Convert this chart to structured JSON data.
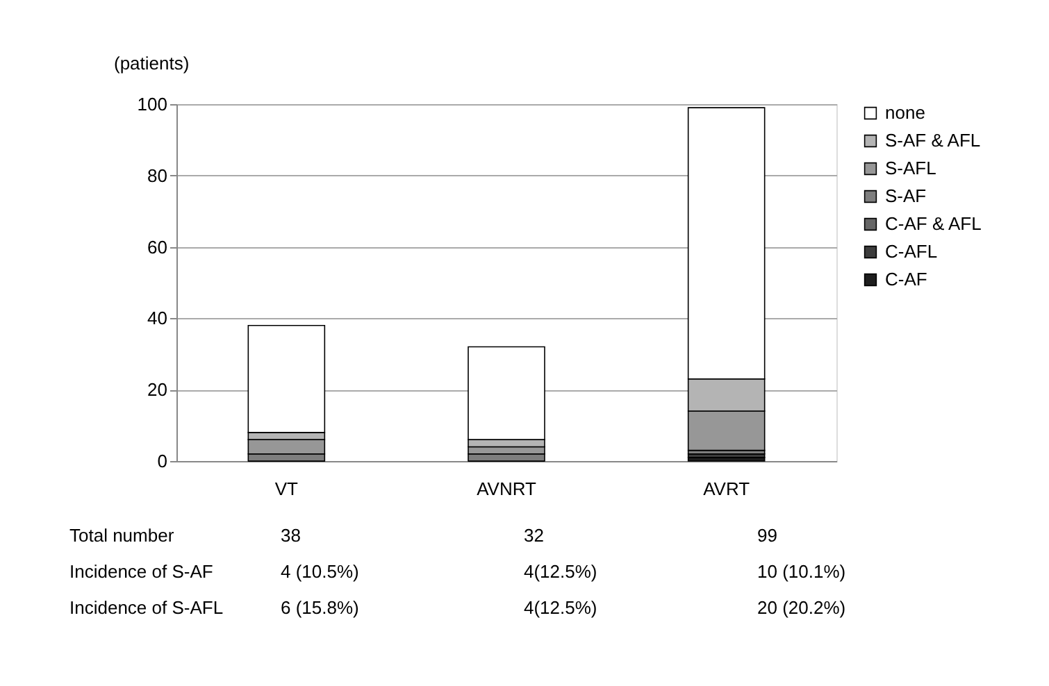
{
  "chart_data": {
    "type": "bar",
    "stacked": true,
    "ylabel": "(patients)",
    "categories": [
      "VT",
      "AVNRT",
      "AVRT"
    ],
    "series": [
      {
        "name": "C-AF",
        "color": "#1e1e1e",
        "values": [
          0,
          0,
          1
        ]
      },
      {
        "name": "C-AFL",
        "color": "#3c3c3c",
        "values": [
          0,
          0,
          1
        ]
      },
      {
        "name": "C-AF & AFL",
        "color": "#666666",
        "values": [
          0,
          0,
          0
        ]
      },
      {
        "name": "S-AF",
        "color": "#7e7e7e",
        "values": [
          2,
          2,
          1
        ]
      },
      {
        "name": "S-AFL",
        "color": "#979797",
        "values": [
          4,
          2,
          11
        ]
      },
      {
        "name": "S-AF & AFL",
        "color": "#b4b4b4",
        "values": [
          2,
          2,
          9
        ]
      },
      {
        "name": "none",
        "color": "#ffffff",
        "values": [
          30,
          26,
          76
        ]
      }
    ],
    "ylim": [
      0,
      100
    ],
    "yticks": [
      0,
      20,
      40,
      60,
      80,
      100
    ],
    "grid": "y",
    "legend": "right",
    "annotations": [
      "Total number",
      "38",
      "32",
      "99",
      "Incidence of S-AF",
      "4 (10.5%)",
      "4(12.5%)",
      "10 (10.1%)",
      "Incidence of S-AFL",
      "6 (15.8%)",
      "4(12.5%)",
      "20 (20.2%)"
    ]
  }
}
